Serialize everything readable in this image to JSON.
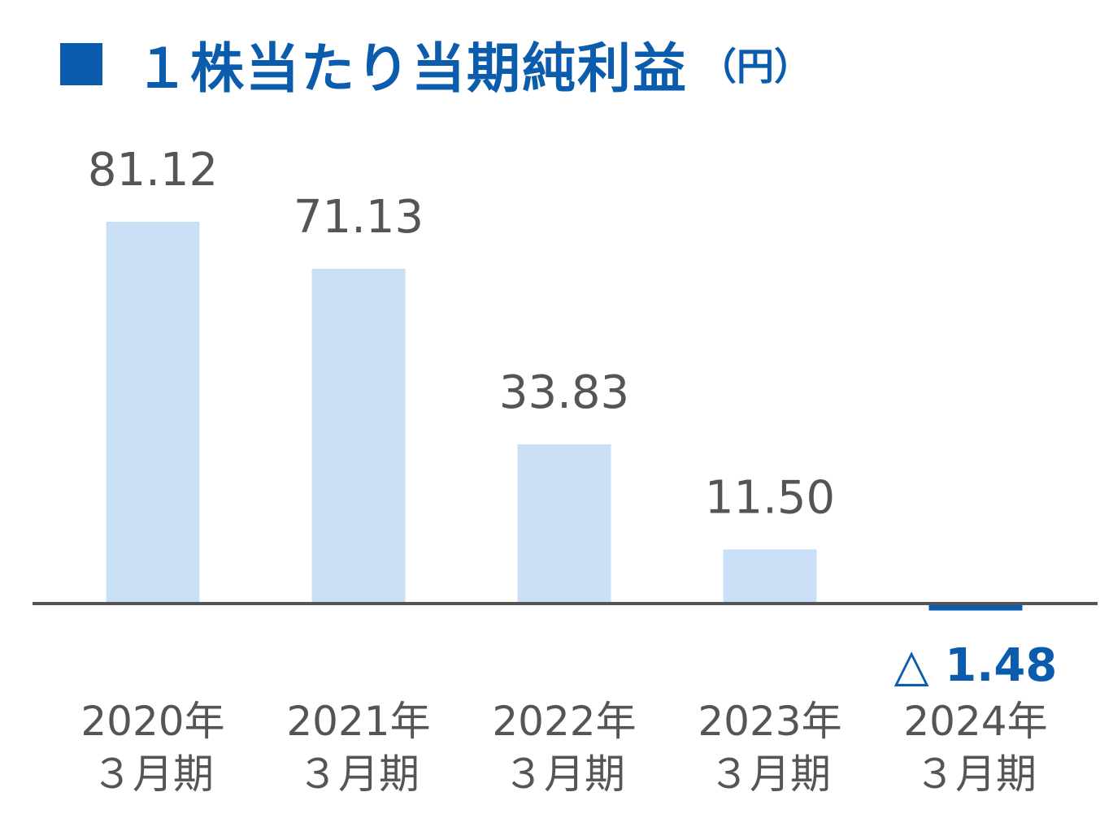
{
  "title": {
    "main": "１株当たり当期純利益",
    "unit": "（円）"
  },
  "colors": {
    "accent": "#0b5cad",
    "bar": "#c9dff5",
    "negative_bar": "#0b5cad",
    "axis": "#555555",
    "label": "#555555"
  },
  "chart_data": {
    "type": "bar",
    "title": "１株当たり当期純利益（円）",
    "categories": [
      [
        "2020年",
        "３月期"
      ],
      [
        "2021年",
        "３月期"
      ],
      [
        "2022年",
        "３月期"
      ],
      [
        "2023年",
        "３月期"
      ],
      [
        "2024年",
        "３月期"
      ]
    ],
    "values": [
      81.12,
      71.13,
      33.83,
      11.5,
      -1.48
    ],
    "value_labels": [
      "81.12",
      "71.13",
      "33.83",
      "11.50",
      "△ 1.48"
    ],
    "xlabel": "",
    "ylabel": "",
    "ylim": [
      -1.48,
      81.12
    ],
    "grid": false,
    "legend": "none"
  }
}
